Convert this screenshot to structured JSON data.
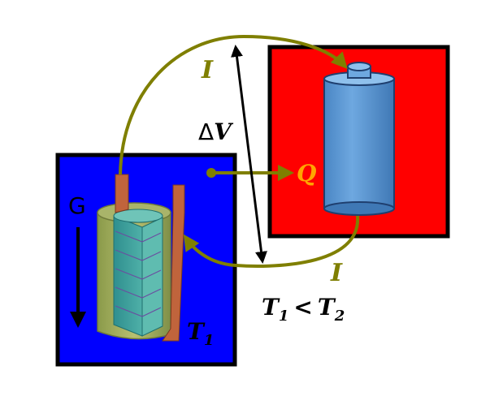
{
  "labels": {
    "current_top": "I",
    "current_bottom": "I",
    "delta_symbol": "Δ",
    "voltage_var": "V",
    "heat": "Q",
    "gravity": "G",
    "temp_cold_var": "T",
    "temp_cold_sub": "1",
    "relation_left_var": "T",
    "relation_left_sub": "1",
    "relation_op": "<",
    "relation_right_var": "T",
    "relation_right_sub": "2"
  },
  "colors": {
    "cold_box": "#0000ff",
    "hot_box": "#ff0000",
    "arrow_olive": "#7f7f00",
    "battery_blue": "#5b9bd5",
    "copper": "#c0643c"
  }
}
